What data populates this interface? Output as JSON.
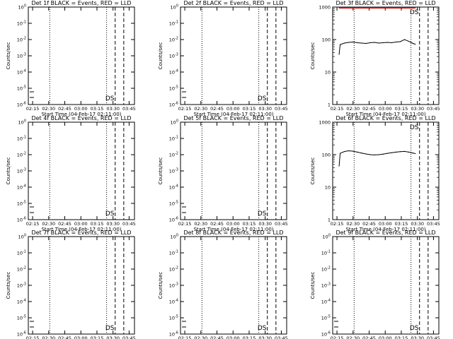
{
  "figure": {
    "xlabel": "Start Time (04-Feb-17 02:11:00)",
    "ylabel": "Counts/sec",
    "x_tick_labels": [
      "02:15",
      "02:30",
      "02:45",
      "03:00",
      "03:15",
      "03:30",
      "03:45"
    ],
    "annotation": "DS",
    "colors": {
      "events": "#000000",
      "lld": "#cc0000",
      "axes": "#000000"
    }
  },
  "chart_data": [
    {
      "type": "line",
      "title": "Det 1f BLACK = Events, RED = LLD",
      "scale": "log-exponent",
      "y_tick_labels": [
        "10^-6",
        "10^-5",
        "10^-4",
        "10^-3",
        "10^-2",
        "10^-1",
        "10^0"
      ],
      "ylim_exp": [
        -6,
        0
      ],
      "series": []
    },
    {
      "type": "line",
      "title": "Det 2f BLACK = Events, RED = LLD",
      "scale": "log-exponent",
      "y_tick_labels": [
        "10^-6",
        "10^-5",
        "10^-4",
        "10^-3",
        "10^-2",
        "10^-1",
        "10^0"
      ],
      "ylim_exp": [
        -6,
        0
      ],
      "series": []
    },
    {
      "type": "line",
      "title": "Det 3f BLACK = Events, RED = LLD",
      "scale": "log-plain",
      "y_tick_labels": [
        "1",
        "10",
        "100",
        "1000"
      ],
      "ylim": [
        1,
        1000
      ],
      "series": [
        {
          "role": "events",
          "color": "#000000",
          "x": [
            "02:17",
            "02:18",
            "02:22",
            "02:26",
            "02:30",
            "02:34",
            "02:38",
            "02:42",
            "02:46",
            "02:50",
            "02:54",
            "02:58",
            "03:02",
            "03:06",
            "03:10",
            "03:14",
            "03:18",
            "03:22",
            "03:26",
            "03:28"
          ],
          "y": [
            35,
            70,
            78,
            82,
            84,
            80,
            78,
            76,
            80,
            82,
            78,
            80,
            82,
            80,
            84,
            86,
            100,
            88,
            76,
            72
          ]
        },
        {
          "role": "lld",
          "color": "#cc0000",
          "x": [
            "02:17",
            "02:30",
            "02:45",
            "03:00",
            "03:15",
            "03:28"
          ],
          "y": [
            950,
            950,
            950,
            950,
            950,
            950
          ]
        }
      ]
    },
    {
      "type": "line",
      "title": "Det 4f BLACK = Events, RED = LLD",
      "scale": "log-exponent",
      "y_tick_labels": [
        "10^-6",
        "10^-5",
        "10^-4",
        "10^-3",
        "10^-2",
        "10^-1",
        "10^0"
      ],
      "ylim_exp": [
        -6,
        0
      ],
      "series": []
    },
    {
      "type": "line",
      "title": "Det 5f BLACK = Events, RED = LLD",
      "scale": "log-exponent",
      "y_tick_labels": [
        "10^-6",
        "10^-5",
        "10^-4",
        "10^-3",
        "10^-2",
        "10^-1",
        "10^0"
      ],
      "ylim_exp": [
        -6,
        0
      ],
      "series": []
    },
    {
      "type": "line",
      "title": "Det 6f BLACK = Events, RED = LLD",
      "scale": "log-plain",
      "y_tick_labels": [
        "1",
        "10",
        "100",
        "1000"
      ],
      "ylim": [
        1,
        1000
      ],
      "series": [
        {
          "role": "events",
          "color": "#000000",
          "x": [
            "02:17",
            "02:18",
            "02:22",
            "02:26",
            "02:30",
            "02:34",
            "02:38",
            "02:42",
            "02:46",
            "02:50",
            "02:54",
            "02:58",
            "03:02",
            "03:06",
            "03:10",
            "03:14",
            "03:18",
            "03:22",
            "03:26",
            "03:28"
          ],
          "y": [
            45,
            110,
            125,
            132,
            128,
            120,
            112,
            105,
            100,
            98,
            100,
            104,
            110,
            115,
            120,
            124,
            126,
            120,
            112,
            108
          ]
        }
      ]
    },
    {
      "type": "line",
      "title": "Det 7f BLACK = Events, RED = LLD",
      "scale": "log-exponent",
      "y_tick_labels": [
        "10^-6",
        "10^-5",
        "10^-4",
        "10^-3",
        "10^-2",
        "10^-1",
        "10^0"
      ],
      "ylim_exp": [
        -6,
        0
      ],
      "series": []
    },
    {
      "type": "line",
      "title": "Det 8f BLACK = Events, RED = LLD",
      "scale": "log-exponent",
      "y_tick_labels": [
        "10^-6",
        "10^-5",
        "10^-4",
        "10^-3",
        "10^-2",
        "10^-1",
        "10^0"
      ],
      "ylim_exp": [
        -6,
        0
      ],
      "series": []
    },
    {
      "type": "line",
      "title": "Det 9f BLACK = Events, RED = LLD",
      "scale": "log-exponent",
      "y_tick_labels": [
        "10^-6",
        "10^-5",
        "10^-4",
        "10^-3",
        "10^-2",
        "10^-1",
        "10^0"
      ],
      "ylim_exp": [
        -6,
        0
      ],
      "series": []
    }
  ]
}
